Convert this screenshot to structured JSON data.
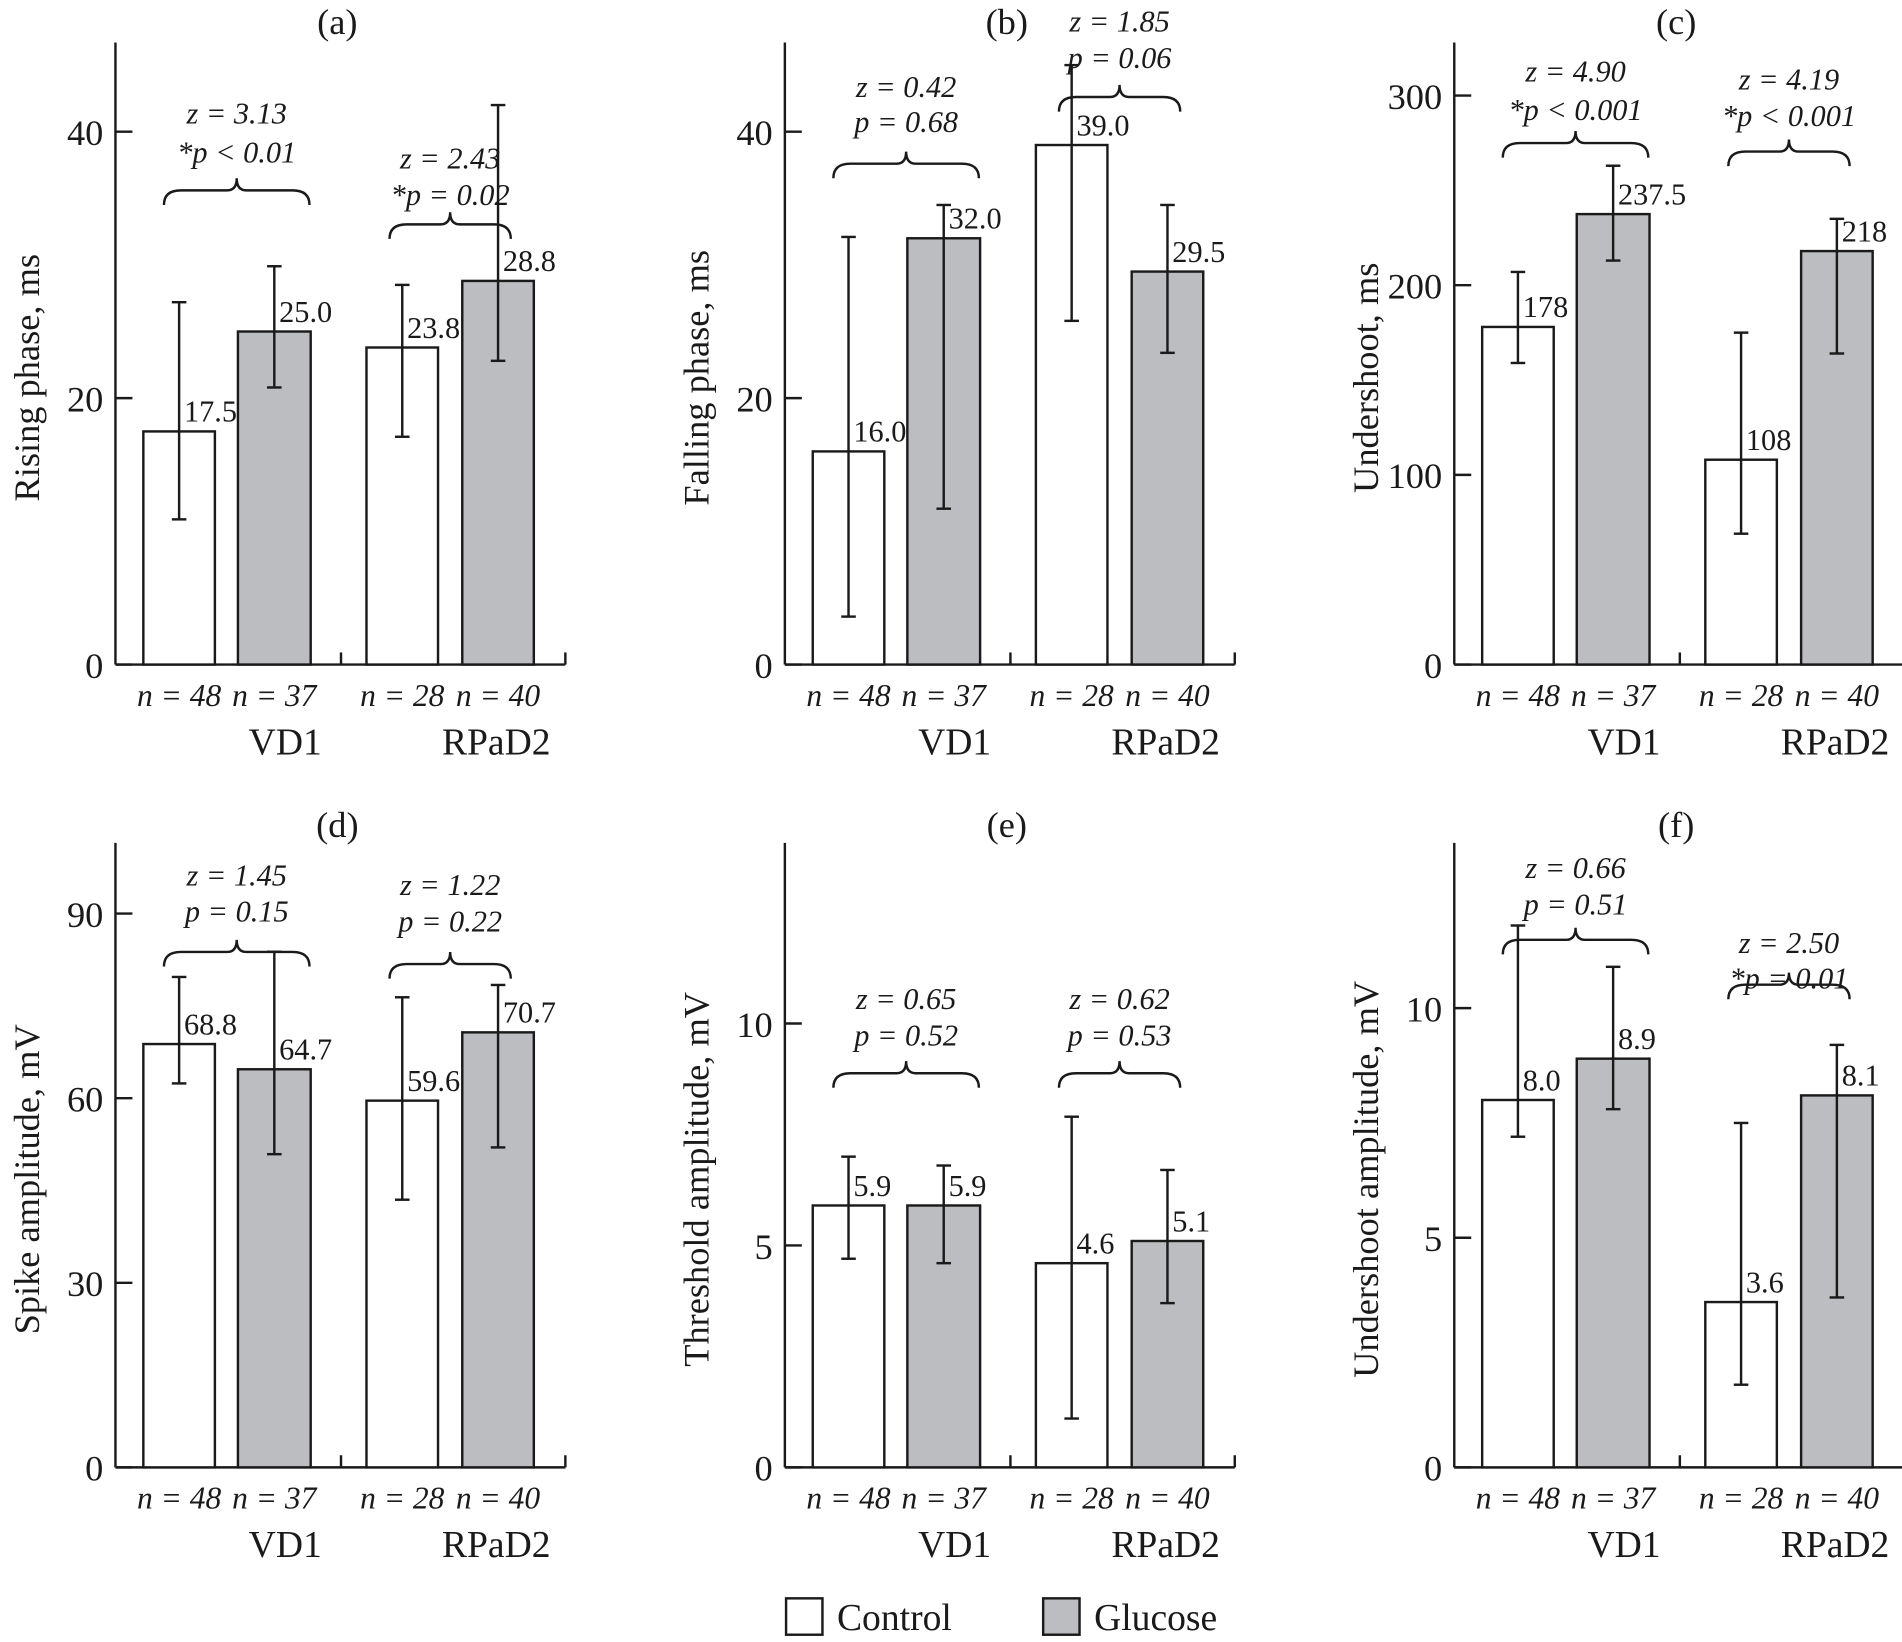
{
  "colors": {
    "control": "#ffffff",
    "glucose": "#bcbdc0",
    "stroke": "#1a1a1a"
  },
  "legend": {
    "position": "bottom-center",
    "items": [
      {
        "label": "Control",
        "color": "#ffffff"
      },
      {
        "label": "Glucose",
        "color": "#bcbdc0"
      }
    ]
  },
  "chart_data": [
    {
      "type": "bar",
      "panel": "(a)",
      "ylabel": "Rising phase, ms",
      "ylim": [
        0,
        46.7
      ],
      "yticks": [
        0,
        20,
        40
      ],
      "groups": [
        "VD1",
        "RPaD2"
      ],
      "n_labels": [
        "n = 48",
        "n = 37",
        "n = 28",
        "n = 40"
      ],
      "series": [
        {
          "name": "Control",
          "values": [
            17.5,
            23.8
          ],
          "labels": [
            "17.5",
            "23.8"
          ],
          "err_low": [
            10.9,
            17.1
          ],
          "err_high": [
            27.2,
            28.5
          ]
        },
        {
          "name": "Glucose",
          "values": [
            25.0,
            28.8
          ],
          "labels": [
            "25.0",
            "28.8"
          ],
          "err_low": [
            20.8,
            22.8
          ],
          "err_high": [
            29.9,
            42.0
          ]
        }
      ],
      "annotations": [
        {
          "z": "z = 3.13",
          "p": "*p < 0.01"
        },
        {
          "z": "z = 2.43",
          "p": "*p = 0.02"
        }
      ]
    },
    {
      "type": "bar",
      "panel": "(b)",
      "ylabel": "Falling phase, ms",
      "ylim": [
        0,
        46.7
      ],
      "yticks": [
        0,
        20,
        40
      ],
      "groups": [
        "VD1",
        "RPaD2"
      ],
      "n_labels": [
        "n = 48",
        "n = 37",
        "n = 28",
        "n = 40"
      ],
      "series": [
        {
          "name": "Control",
          "values": [
            16.0,
            39.0
          ],
          "labels": [
            "16.0",
            "39.0"
          ],
          "err_low": [
            3.6,
            25.8
          ],
          "err_high": [
            32.1,
            45.0
          ]
        },
        {
          "name": "Glucose",
          "values": [
            32.0,
            29.5
          ],
          "labels": [
            "32.0",
            "29.5"
          ],
          "err_low": [
            11.7,
            23.4
          ],
          "err_high": [
            34.5,
            34.5
          ]
        }
      ],
      "annotations": [
        {
          "z": "z = 0.42",
          "p": "p = 0.68"
        },
        {
          "z": "z = 1.85",
          "p": "p = 0.06"
        }
      ]
    },
    {
      "type": "bar",
      "panel": "(c)",
      "ylabel": "Undershoot, ms",
      "ylim": [
        0,
        328
      ],
      "yticks": [
        0,
        100,
        200,
        300
      ],
      "groups": [
        "VD1",
        "RPaD2"
      ],
      "n_labels": [
        "n = 48",
        "n = 37",
        "n = 28",
        "n = 40"
      ],
      "series": [
        {
          "name": "Control",
          "values": [
            178,
            108
          ],
          "labels": [
            "178",
            "108"
          ],
          "err_low": [
            159,
            69
          ],
          "err_high": [
            207,
            175
          ]
        },
        {
          "name": "Glucose",
          "values": [
            237.5,
            218
          ],
          "labels": [
            "237.5",
            "218"
          ],
          "err_low": [
            213,
            164
          ],
          "err_high": [
            263,
            235
          ]
        }
      ],
      "annotations": [
        {
          "z": "z = 4.90",
          "p": "*p < 0.001"
        },
        {
          "z": "z = 4.19",
          "p": "*p < 0.001"
        }
      ]
    },
    {
      "type": "bar",
      "panel": "(d)",
      "ylabel": "Spike amplitude, mV",
      "ylim": [
        0,
        101.5
      ],
      "yticks": [
        0,
        30,
        60,
        90
      ],
      "groups": [
        "VD1",
        "RPaD2"
      ],
      "n_labels": [
        "n = 48",
        "n = 37",
        "n = 28",
        "n = 40"
      ],
      "series": [
        {
          "name": "Control",
          "values": [
            68.8,
            59.6
          ],
          "labels": [
            "68.8",
            "59.6"
          ],
          "err_low": [
            62.4,
            43.5
          ],
          "err_high": [
            79.7,
            76.4
          ]
        },
        {
          "name": "Glucose",
          "values": [
            64.7,
            70.7
          ],
          "labels": [
            "64.7",
            "70.7"
          ],
          "err_low": [
            50.9,
            52.0
          ],
          "err_high": [
            83.8,
            78.4
          ]
        }
      ],
      "annotations": [
        {
          "z": "z = 1.45",
          "p": "p = 0.15"
        },
        {
          "z": "z = 1.22",
          "p": "p = 0.22"
        }
      ]
    },
    {
      "type": "bar",
      "panel": "(e)",
      "ylabel": "Threshold amplitude, mV",
      "ylim": [
        0,
        14.07
      ],
      "yticks": [
        0,
        5,
        10
      ],
      "groups": [
        "VD1",
        "RPaD2"
      ],
      "n_labels": [
        "n = 48",
        "n = 37",
        "n = 28",
        "n = 40"
      ],
      "series": [
        {
          "name": "Control",
          "values": [
            5.9,
            4.6
          ],
          "labels": [
            "5.9",
            "4.6"
          ],
          "err_low": [
            4.7,
            1.1
          ],
          "err_high": [
            7.0,
            7.9
          ]
        },
        {
          "name": "Glucose",
          "values": [
            5.9,
            5.1
          ],
          "labels": [
            "5.9",
            "5.1"
          ],
          "err_low": [
            4.6,
            3.7
          ],
          "err_high": [
            6.8,
            6.7
          ]
        }
      ],
      "annotations": [
        {
          "z": "z = 0.65",
          "p": "p = 0.52"
        },
        {
          "z": "z = 0.62",
          "p": "p = 0.53"
        }
      ]
    },
    {
      "type": "bar",
      "panel": "(f)",
      "ylabel": "Undershoot amplitude, mV",
      "ylim": [
        0,
        13.6
      ],
      "yticks": [
        0,
        5,
        10
      ],
      "groups": [
        "VD1",
        "RPaD2"
      ],
      "n_labels": [
        "n = 48",
        "n = 37",
        "n = 28",
        "n = 40"
      ],
      "series": [
        {
          "name": "Control",
          "values": [
            8.0,
            3.6
          ],
          "labels": [
            "8.0",
            "3.6"
          ],
          "err_low": [
            7.2,
            1.8
          ],
          "err_high": [
            11.8,
            7.5
          ]
        },
        {
          "name": "Glucose",
          "values": [
            8.9,
            8.1
          ],
          "labels": [
            "8.9",
            "8.1"
          ],
          "err_low": [
            7.8,
            3.7
          ],
          "err_high": [
            10.9,
            9.2
          ]
        }
      ],
      "annotations": [
        {
          "z": "z = 0.66",
          "p": "p = 0.51"
        },
        {
          "z": "z = 2.50",
          "p": "*p = 0.01"
        }
      ]
    }
  ]
}
